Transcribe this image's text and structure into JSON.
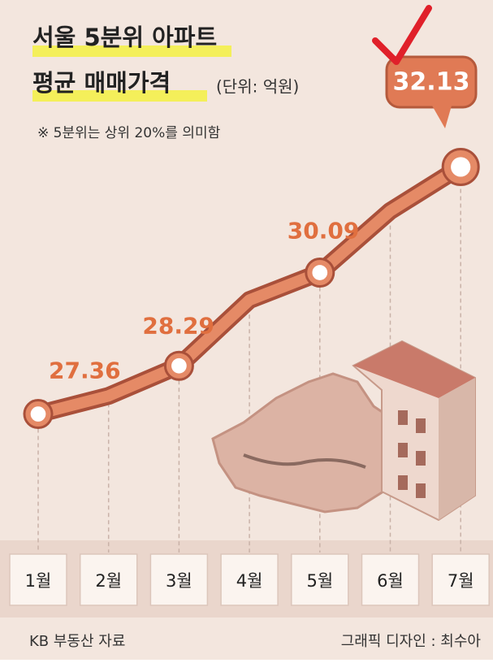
{
  "chart_data": {
    "type": "line",
    "title": "서울 5분위 아파트",
    "subtitle": "평균 매매가격",
    "unit_note": "(단위: 억원)",
    "note": "※ 5분위는 상위 20%를 의미함",
    "source": "KB 부동산 자료",
    "credit": "그래픽 디자인 : 최수아",
    "categories": [
      "1월",
      "2월",
      "3월",
      "4월",
      "5월",
      "6월",
      "7월"
    ],
    "values": [
      27.36,
      27.71,
      28.29,
      29.56,
      30.09,
      31.28,
      32.13
    ],
    "value_labels": [
      "27.36",
      null,
      "28.29",
      null,
      "30.09",
      null,
      "32.13"
    ],
    "color": "#e58a66",
    "ylim": [
      25,
      33
    ]
  }
}
